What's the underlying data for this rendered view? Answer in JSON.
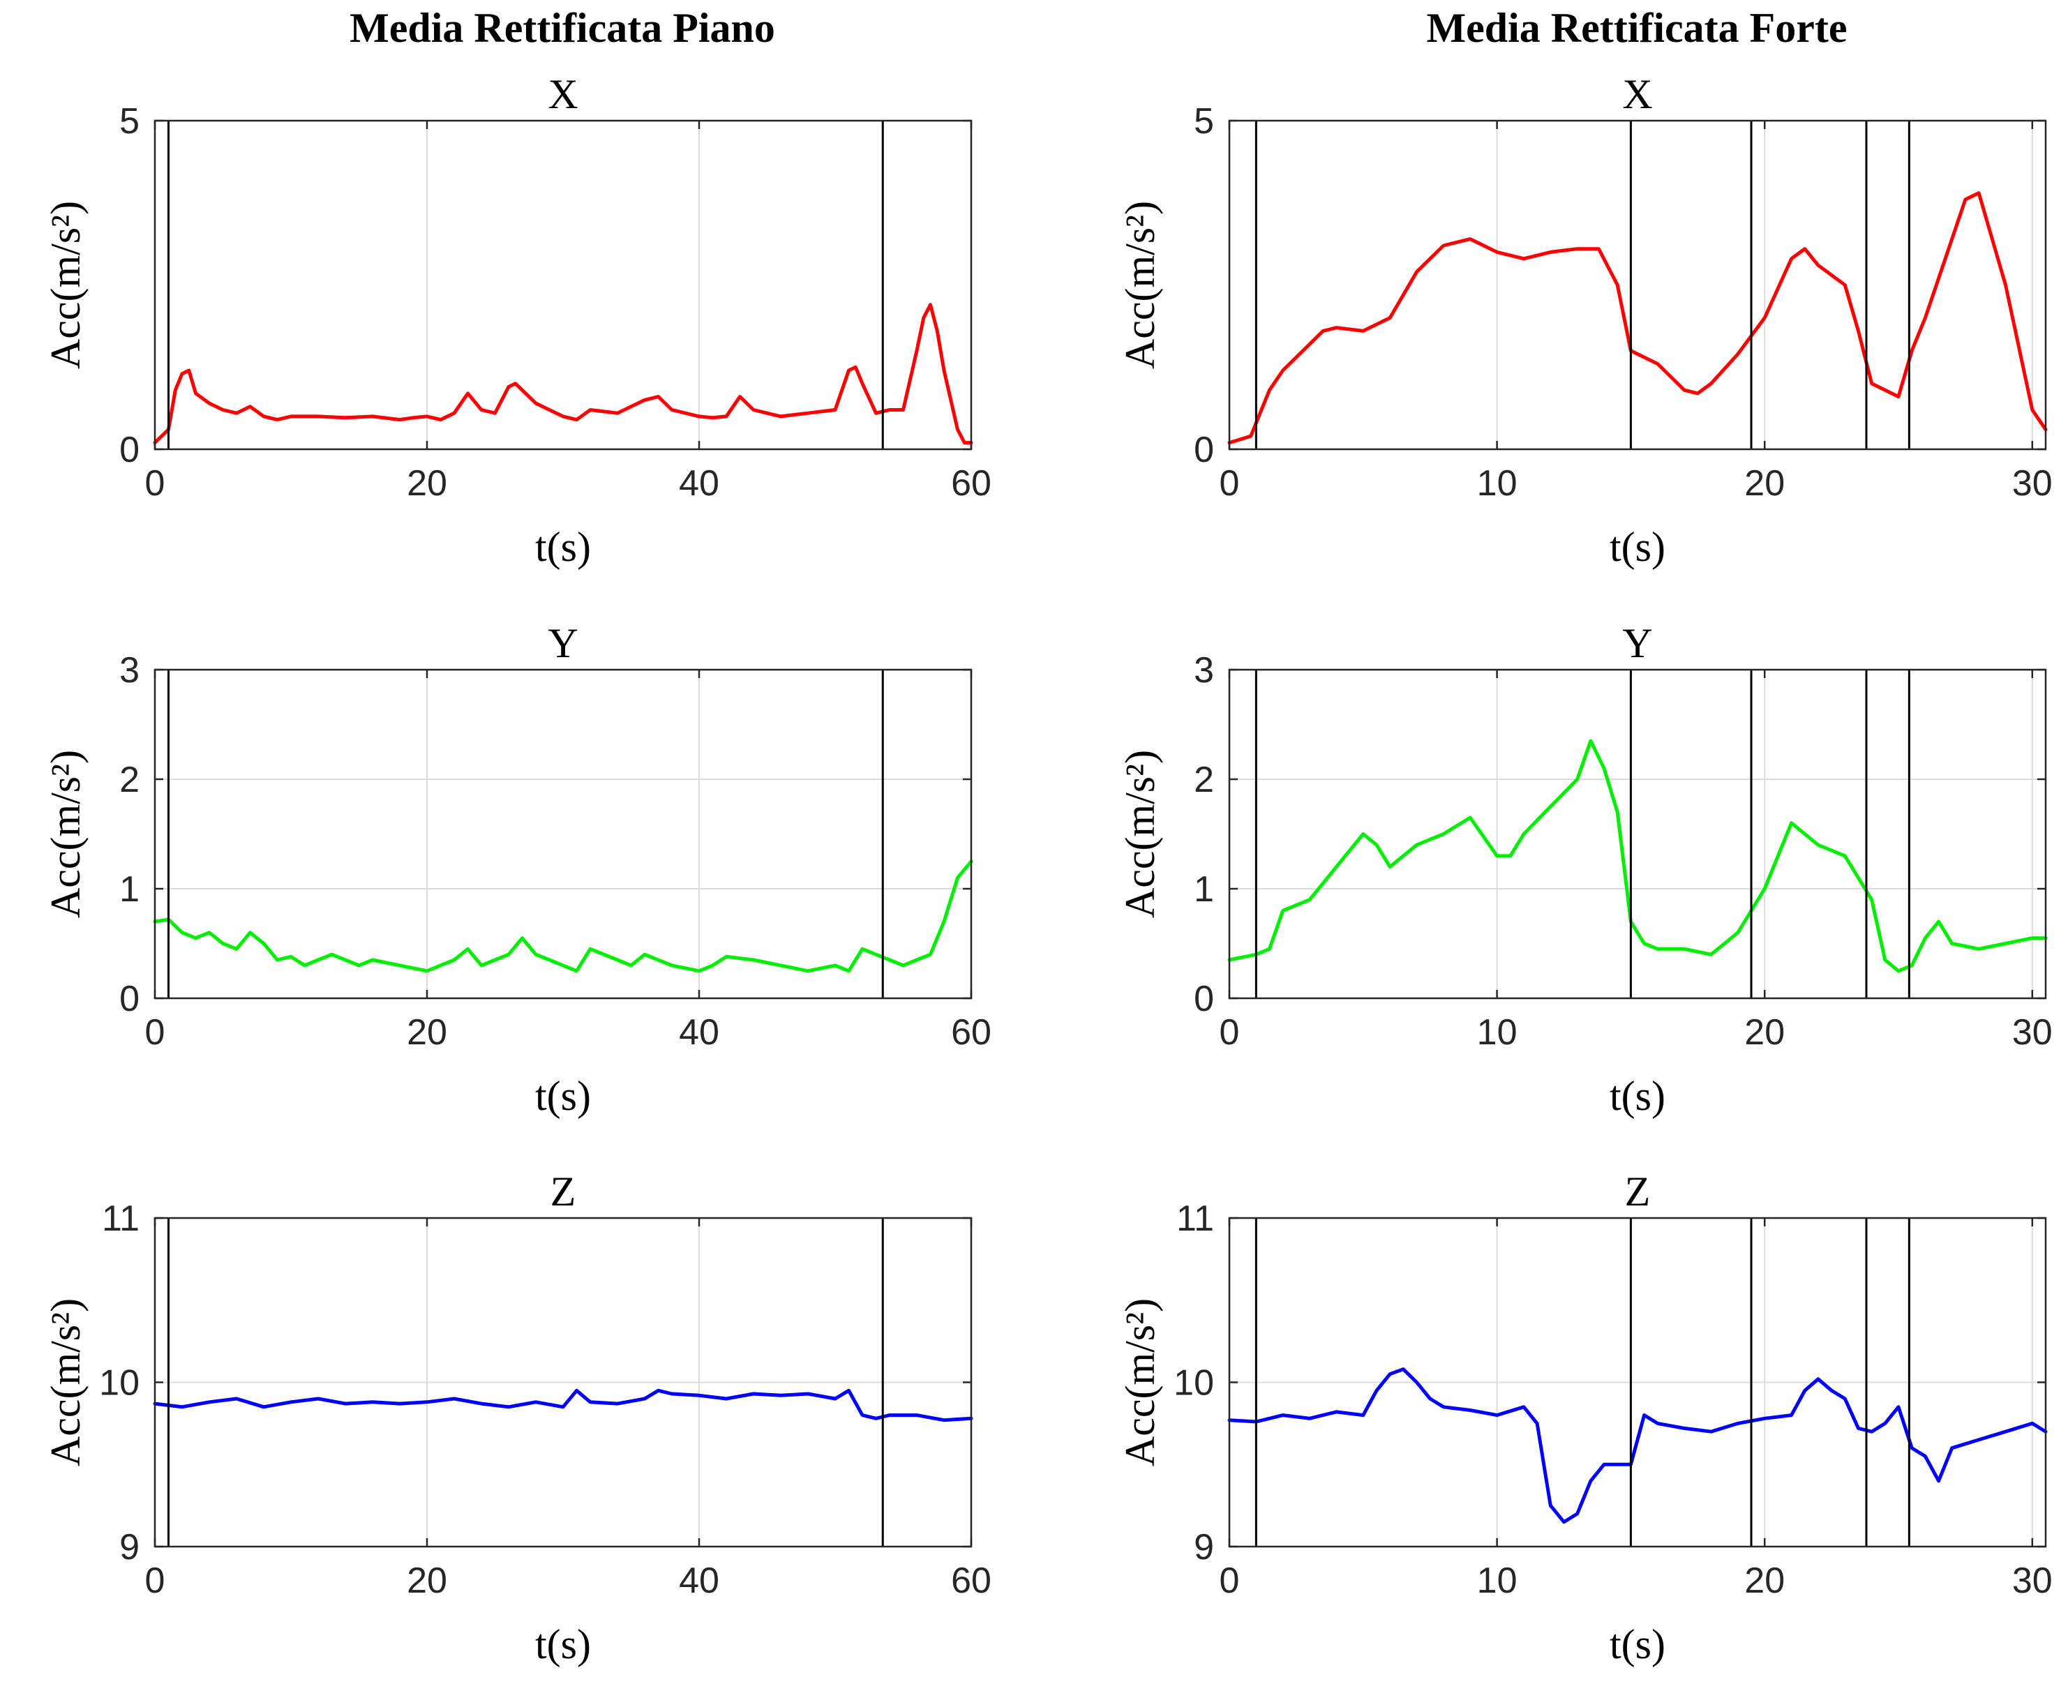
{
  "column_titles": [
    "Media Rettificata Piano",
    "Media Rettificata Forte"
  ],
  "colors": {
    "X": "#ff0000",
    "Y": "#00ee00",
    "Z": "#0000ff"
  },
  "chart_data": [
    {
      "type": "line",
      "title": "X",
      "xlabel": "t(s)",
      "ylabel": "Acc(m/s²)",
      "xlim": [
        0,
        60
      ],
      "ylim": [
        0,
        5
      ],
      "xticks": [
        "0",
        "20",
        "40",
        "60"
      ],
      "yticks": [
        "0",
        "5"
      ],
      "grid": true,
      "event_markers": [
        1,
        53.5
      ],
      "series": [
        {
          "color": "#ff0000",
          "x": [
            0,
            1,
            1.5,
            2,
            2.5,
            3,
            4,
            5,
            6,
            7,
            8,
            9,
            10,
            12,
            14,
            16,
            18,
            19,
            20,
            21,
            22,
            23,
            24,
            25,
            26,
            26.5,
            27,
            28,
            29,
            30,
            31,
            32,
            34,
            36,
            37,
            38,
            40,
            41,
            42,
            43,
            44,
            46,
            48,
            50,
            51,
            51.5,
            52,
            53,
            54,
            55,
            56,
            56.5,
            57,
            57.5,
            58,
            59,
            59.5,
            60
          ],
          "y": [
            0.1,
            0.3,
            0.9,
            1.15,
            1.2,
            0.85,
            0.7,
            0.6,
            0.55,
            0.65,
            0.5,
            0.45,
            0.5,
            0.5,
            0.48,
            0.5,
            0.45,
            0.48,
            0.5,
            0.45,
            0.55,
            0.85,
            0.6,
            0.55,
            0.95,
            1.0,
            0.9,
            0.7,
            0.6,
            0.5,
            0.45,
            0.6,
            0.55,
            0.75,
            0.8,
            0.6,
            0.5,
            0.48,
            0.5,
            0.8,
            0.6,
            0.5,
            0.55,
            0.6,
            1.2,
            1.25,
            1.0,
            0.55,
            0.6,
            0.6,
            1.5,
            2.0,
            2.2,
            1.8,
            1.2,
            0.3,
            0.1,
            0.1
          ]
        }
      ]
    },
    {
      "type": "line",
      "title": "X",
      "xlabel": "t(s)",
      "ylabel": "Acc(m/s²)",
      "xlim": [
        0,
        30.5
      ],
      "ylim": [
        0,
        5
      ],
      "xticks": [
        "0",
        "10",
        "20",
        "30"
      ],
      "yticks": [
        "0",
        "5"
      ],
      "grid": true,
      "event_markers": [
        1,
        15,
        19.5,
        23.8,
        25.4
      ],
      "series": [
        {
          "color": "#ff0000",
          "x": [
            0,
            0.8,
            1.5,
            2,
            3,
            3.5,
            4,
            5,
            6,
            7,
            8,
            9,
            10,
            11,
            12,
            13,
            13.8,
            14.5,
            15,
            16,
            17,
            17.5,
            18,
            19,
            20,
            21,
            21.5,
            22,
            23,
            23.5,
            24,
            25,
            25.5,
            26,
            27,
            27.5,
            28,
            29,
            30,
            30.5
          ],
          "y": [
            0.1,
            0.2,
            0.9,
            1.2,
            1.6,
            1.8,
            1.85,
            1.8,
            2.0,
            2.7,
            3.1,
            3.2,
            3.0,
            2.9,
            3.0,
            3.05,
            3.05,
            2.5,
            1.5,
            1.3,
            0.9,
            0.85,
            1.0,
            1.45,
            2.0,
            2.9,
            3.05,
            2.8,
            2.5,
            1.8,
            1.0,
            0.8,
            1.5,
            2.0,
            3.2,
            3.8,
            3.9,
            2.5,
            0.6,
            0.3
          ]
        }
      ]
    },
    {
      "type": "line",
      "title": "Y",
      "xlabel": "t(s)",
      "ylabel": "Acc(m/s²)",
      "xlim": [
        0,
        60
      ],
      "ylim": [
        0,
        3
      ],
      "xticks": [
        "0",
        "20",
        "40",
        "60"
      ],
      "yticks": [
        "0",
        "1",
        "2",
        "3"
      ],
      "grid": true,
      "event_markers": [
        1,
        53.5
      ],
      "series": [
        {
          "color": "#00ee00",
          "x": [
            0,
            1,
            2,
            3,
            4,
            5,
            6,
            7,
            8,
            9,
            10,
            11,
            12,
            13,
            14,
            15,
            16,
            18,
            20,
            22,
            23,
            24,
            25,
            26,
            27,
            28,
            29,
            30,
            31,
            32,
            34,
            35,
            36,
            38,
            40,
            41,
            42,
            44,
            46,
            48,
            50,
            51,
            52,
            53,
            54,
            55,
            56,
            57,
            58,
            59,
            60
          ],
          "y": [
            0.7,
            0.72,
            0.6,
            0.55,
            0.6,
            0.5,
            0.45,
            0.6,
            0.5,
            0.35,
            0.38,
            0.3,
            0.35,
            0.4,
            0.35,
            0.3,
            0.35,
            0.3,
            0.25,
            0.35,
            0.45,
            0.3,
            0.35,
            0.4,
            0.55,
            0.4,
            0.35,
            0.3,
            0.25,
            0.45,
            0.35,
            0.3,
            0.4,
            0.3,
            0.25,
            0.3,
            0.38,
            0.35,
            0.3,
            0.25,
            0.3,
            0.25,
            0.45,
            0.4,
            0.35,
            0.3,
            0.35,
            0.4,
            0.7,
            1.1,
            1.25
          ]
        }
      ]
    },
    {
      "type": "line",
      "title": "Y",
      "xlabel": "t(s)",
      "ylabel": "Acc(m/s²)",
      "xlim": [
        0,
        30.5
      ],
      "ylim": [
        0,
        3
      ],
      "xticks": [
        "0",
        "10",
        "20",
        "30"
      ],
      "yticks": [
        "0",
        "1",
        "2",
        "3"
      ],
      "grid": true,
      "event_markers": [
        1,
        15,
        19.5,
        23.8,
        25.4
      ],
      "series": [
        {
          "color": "#00ee00",
          "x": [
            0,
            1,
            1.5,
            2,
            3,
            4,
            5,
            5.5,
            6,
            7,
            8,
            9,
            10,
            10.5,
            11,
            12,
            13,
            13.5,
            14,
            14.5,
            15,
            15.5,
            16,
            17,
            18,
            19,
            20,
            21,
            21.5,
            22,
            23,
            24,
            24.5,
            25,
            25.5,
            26,
            26.5,
            27,
            28,
            29,
            30,
            30.5
          ],
          "y": [
            0.35,
            0.4,
            0.45,
            0.8,
            0.9,
            1.2,
            1.5,
            1.4,
            1.2,
            1.4,
            1.5,
            1.65,
            1.3,
            1.3,
            1.5,
            1.75,
            2.0,
            2.35,
            2.1,
            1.7,
            0.7,
            0.5,
            0.45,
            0.45,
            0.4,
            0.6,
            1.0,
            1.6,
            1.5,
            1.4,
            1.3,
            0.9,
            0.35,
            0.25,
            0.3,
            0.55,
            0.7,
            0.5,
            0.45,
            0.5,
            0.55,
            0.55
          ]
        }
      ]
    },
    {
      "type": "line",
      "title": "Z",
      "xlabel": "t(s)",
      "ylabel": "Acc(m/s²)",
      "xlim": [
        0,
        60
      ],
      "ylim": [
        9,
        11
      ],
      "xticks": [
        "0",
        "20",
        "40",
        "60"
      ],
      "yticks": [
        "9",
        "10",
        "11"
      ],
      "grid": true,
      "event_markers": [
        1,
        53.5
      ],
      "series": [
        {
          "color": "#0000ff",
          "x": [
            0,
            2,
            4,
            6,
            8,
            10,
            12,
            14,
            16,
            18,
            20,
            22,
            24,
            26,
            28,
            30,
            31,
            32,
            34,
            36,
            37,
            38,
            40,
            42,
            44,
            46,
            48,
            50,
            51,
            52,
            53,
            54,
            56,
            58,
            60
          ],
          "y": [
            9.87,
            9.85,
            9.88,
            9.9,
            9.85,
            9.88,
            9.9,
            9.87,
            9.88,
            9.87,
            9.88,
            9.9,
            9.87,
            9.85,
            9.88,
            9.85,
            9.95,
            9.88,
            9.87,
            9.9,
            9.95,
            9.93,
            9.92,
            9.9,
            9.93,
            9.92,
            9.93,
            9.9,
            9.95,
            9.8,
            9.78,
            9.8,
            9.8,
            9.77,
            9.78
          ]
        }
      ]
    },
    {
      "type": "line",
      "title": "Z",
      "xlabel": "t(s)",
      "ylabel": "Acc(m/s²)",
      "xlim": [
        0,
        30.5
      ],
      "ylim": [
        9,
        11
      ],
      "xticks": [
        "0",
        "10",
        "20",
        "30"
      ],
      "yticks": [
        "9",
        "10",
        "11"
      ],
      "grid": true,
      "event_markers": [
        1,
        15,
        19.5,
        23.8,
        25.4
      ],
      "series": [
        {
          "color": "#0000ff",
          "x": [
            0,
            1,
            2,
            3,
            4,
            5,
            5.5,
            6,
            6.5,
            7,
            7.5,
            8,
            9,
            10,
            11,
            11.5,
            12,
            12.5,
            13,
            13.5,
            14,
            15,
            15.5,
            16,
            17,
            18,
            19,
            20,
            21,
            21.5,
            22,
            22.5,
            23,
            23.5,
            24,
            24.5,
            25,
            25.5,
            26,
            26.5,
            27,
            28,
            29,
            30,
            30.5
          ],
          "y": [
            9.77,
            9.76,
            9.8,
            9.78,
            9.82,
            9.8,
            9.95,
            10.05,
            10.08,
            10.0,
            9.9,
            9.85,
            9.83,
            9.8,
            9.85,
            9.75,
            9.25,
            9.15,
            9.2,
            9.4,
            9.5,
            9.5,
            9.8,
            9.75,
            9.72,
            9.7,
            9.75,
            9.78,
            9.8,
            9.95,
            10.02,
            9.95,
            9.9,
            9.72,
            9.7,
            9.75,
            9.85,
            9.6,
            9.55,
            9.4,
            9.6,
            9.65,
            9.7,
            9.75,
            9.7
          ]
        }
      ]
    }
  ]
}
